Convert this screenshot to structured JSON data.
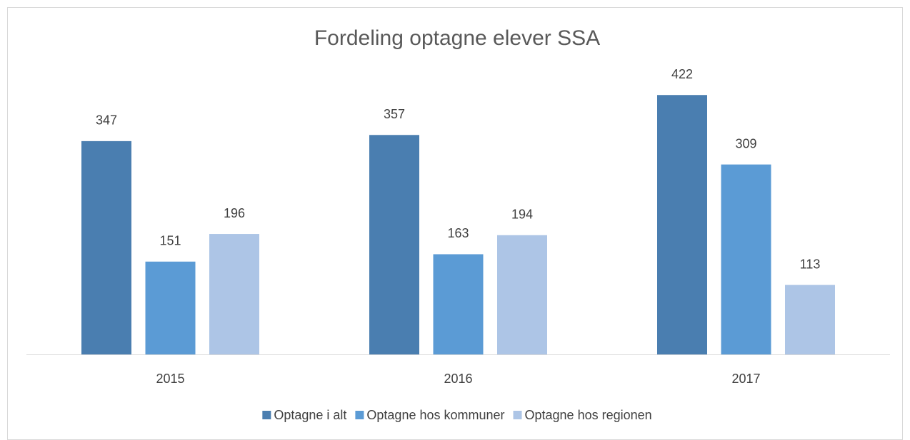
{
  "chart_data": {
    "type": "bar",
    "title": "Fordeling optagne elever SSA",
    "categories": [
      "2015",
      "2016",
      "2017"
    ],
    "series": [
      {
        "name": "Optagne i alt",
        "color": "#4a7eb0",
        "values": [
          347,
          357,
          422
        ]
      },
      {
        "name": "Optagne hos kommuner",
        "color": "#5b9bd5",
        "values": [
          151,
          163,
          309
        ]
      },
      {
        "name": "Optagne hos regionen",
        "color": "#adc5e6",
        "values": [
          196,
          194,
          113
        ]
      }
    ],
    "ylim": [
      0,
      500
    ],
    "legend": "bottom"
  }
}
